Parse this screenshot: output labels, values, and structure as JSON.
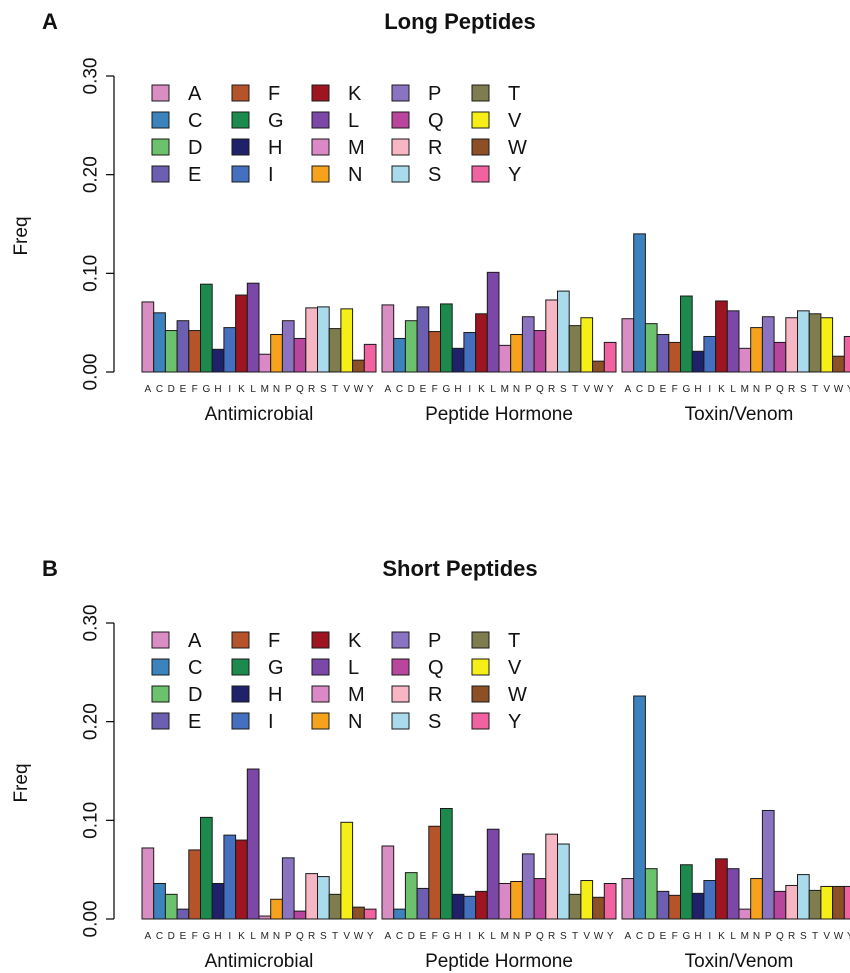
{
  "chart_data": [
    {
      "panel": "A",
      "type": "bar",
      "title": "Long Peptides",
      "ylabel": "Freq",
      "ylim": [
        0,
        0.3
      ],
      "yticks": [
        "0.00",
        "0.10",
        "0.20",
        "0.30"
      ],
      "categories": [
        "A",
        "C",
        "D",
        "E",
        "F",
        "G",
        "H",
        "I",
        "K",
        "L",
        "M",
        "N",
        "P",
        "Q",
        "R",
        "S",
        "T",
        "V",
        "W",
        "Y"
      ],
      "legend": [
        "A",
        "C",
        "D",
        "E",
        "F",
        "G",
        "H",
        "I",
        "K",
        "L",
        "M",
        "N",
        "P",
        "Q",
        "R",
        "S",
        "T",
        "V",
        "W",
        "Y"
      ],
      "legend_placement": "top-left",
      "series": [
        {
          "name": "Antimicrobial",
          "values": [
            0.071,
            0.06,
            0.042,
            0.052,
            0.042,
            0.089,
            0.023,
            0.045,
            0.078,
            0.09,
            0.018,
            0.038,
            0.052,
            0.034,
            0.065,
            0.066,
            0.044,
            0.064,
            0.012,
            0.028
          ]
        },
        {
          "name": "Peptide Hormone",
          "values": [
            0.068,
            0.034,
            0.052,
            0.066,
            0.041,
            0.069,
            0.024,
            0.04,
            0.059,
            0.101,
            0.027,
            0.038,
            0.056,
            0.042,
            0.073,
            0.082,
            0.047,
            0.055,
            0.011,
            0.03
          ]
        },
        {
          "name": "Toxin/Venom",
          "values": [
            0.054,
            0.14,
            0.049,
            0.038,
            0.03,
            0.077,
            0.021,
            0.036,
            0.072,
            0.062,
            0.024,
            0.045,
            0.056,
            0.03,
            0.055,
            0.062,
            0.059,
            0.055,
            0.016,
            0.036
          ]
        }
      ]
    },
    {
      "panel": "B",
      "type": "bar",
      "title": "Short Peptides",
      "ylabel": "Freq",
      "ylim": [
        0,
        0.3
      ],
      "yticks": [
        "0.00",
        "0.10",
        "0.20",
        "0.30"
      ],
      "categories": [
        "A",
        "C",
        "D",
        "E",
        "F",
        "G",
        "H",
        "I",
        "K",
        "L",
        "M",
        "N",
        "P",
        "Q",
        "R",
        "S",
        "T",
        "V",
        "W",
        "Y"
      ],
      "legend": [
        "A",
        "C",
        "D",
        "E",
        "F",
        "G",
        "H",
        "I",
        "K",
        "L",
        "M",
        "N",
        "P",
        "Q",
        "R",
        "S",
        "T",
        "V",
        "W",
        "Y"
      ],
      "legend_placement": "top-left",
      "series": [
        {
          "name": "Antimicrobial",
          "values": [
            0.072,
            0.036,
            0.025,
            0.01,
            0.07,
            0.103,
            0.036,
            0.085,
            0.08,
            0.152,
            0.003,
            0.02,
            0.062,
            0.008,
            0.046,
            0.043,
            0.025,
            0.098,
            0.012,
            0.01
          ]
        },
        {
          "name": "Peptide Hormone",
          "values": [
            0.074,
            0.01,
            0.047,
            0.031,
            0.094,
            0.112,
            0.025,
            0.023,
            0.028,
            0.091,
            0.036,
            0.038,
            0.066,
            0.041,
            0.086,
            0.076,
            0.025,
            0.039,
            0.022,
            0.036
          ]
        },
        {
          "name": "Toxin/Venom",
          "values": [
            0.041,
            0.226,
            0.051,
            0.028,
            0.024,
            0.055,
            0.026,
            0.039,
            0.061,
            0.051,
            0.01,
            0.041,
            0.11,
            0.028,
            0.034,
            0.045,
            0.029,
            0.033,
            0.033,
            0.033
          ]
        }
      ]
    }
  ],
  "colors": {
    "A": "#d98ec3",
    "C": "#3c83bd",
    "D": "#6cc16c",
    "E": "#6c5eb1",
    "F": "#b5542a",
    "G": "#1c8a4c",
    "H": "#1f226b",
    "I": "#4570bf",
    "K": "#9c1520",
    "L": "#7c48a8",
    "M": "#d989c5",
    "N": "#f7a21c",
    "P": "#8a73c0",
    "Q": "#b9469e",
    "R": "#f6b6c3",
    "S": "#a9dbec",
    "T": "#7f7c50",
    "V": "#f5ee17",
    "W": "#8c4f26",
    "Y": "#f063a0"
  }
}
